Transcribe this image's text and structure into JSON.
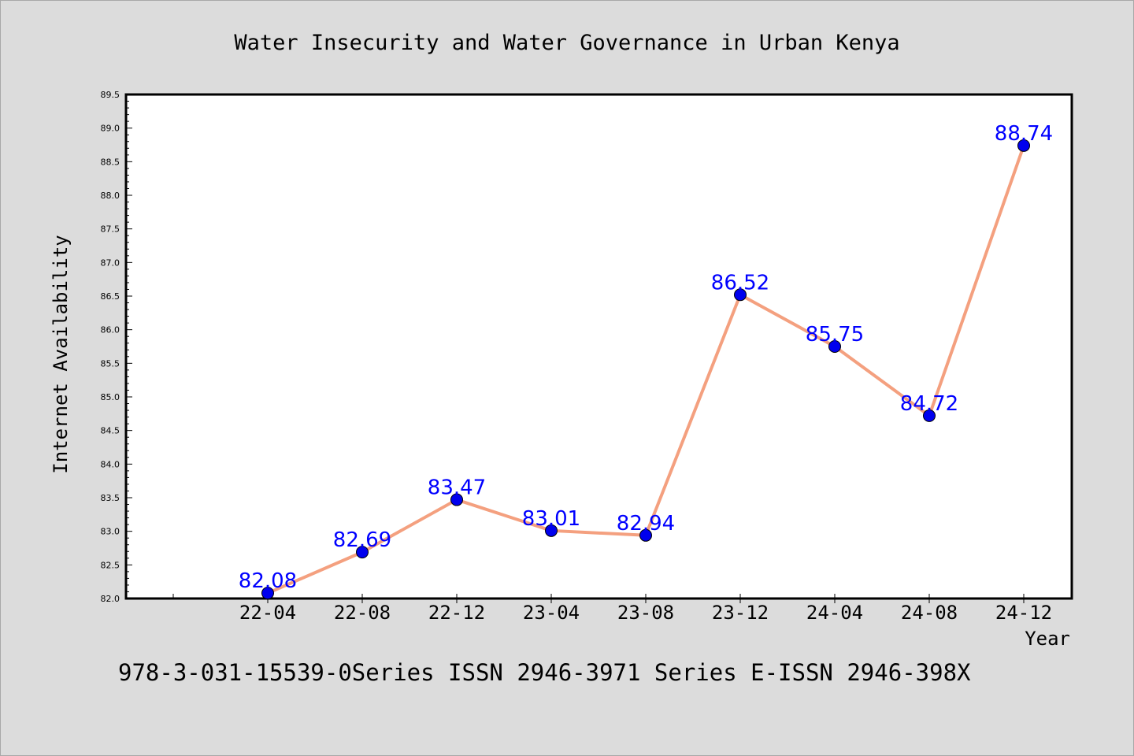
{
  "chart_data": {
    "type": "line",
    "title": "Water Insecurity and Water Governance in Urban Kenya",
    "xlabel": "Year",
    "ylabel": "Internet Availability",
    "categories": [
      "22-04",
      "22-08",
      "22-12",
      "23-04",
      "23-08",
      "23-12",
      "24-04",
      "24-08",
      "24-12"
    ],
    "series": [
      {
        "values": [
          82.08,
          82.69,
          83.47,
          83.01,
          82.94,
          86.52,
          85.75,
          84.72,
          88.74
        ]
      }
    ],
    "data_labels": [
      "82.08",
      "82.69",
      "83.47",
      "83.01",
      "82.94",
      "86.52",
      "85.75",
      "84.72",
      "88.74"
    ],
    "ylim": [
      82.0,
      89.5
    ],
    "y_ticks": [
      "82.0",
      "82.5",
      "83.0",
      "83.5",
      "84.0",
      "84.5",
      "85.0",
      "85.5",
      "86.0",
      "86.5",
      "87.0",
      "87.5",
      "88.0",
      "88.5",
      "89.0",
      "89.5"
    ],
    "grid": false,
    "legend": "none",
    "colors": {
      "line": "#f4a07f",
      "marker": "#0000ee",
      "label": "#0000ff",
      "background": "#dcdcdc",
      "plot": "#ffffff"
    }
  },
  "footer_text": "978-3-031-15539-0Series ISSN 2946-3971 Series E-ISSN 2946-398X"
}
